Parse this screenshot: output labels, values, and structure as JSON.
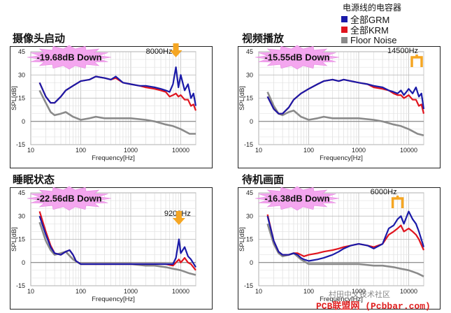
{
  "legend": {
    "title": "电源线的电容器",
    "items": [
      {
        "label": "全部GRM",
        "color": "#1a1aa8"
      },
      {
        "label": "全部KRM",
        "color": "#e0141e"
      },
      {
        "label": "Floor Noise",
        "color": "#8a8a8a"
      }
    ]
  },
  "watermark": {
    "line1": "村田中文技术社区",
    "line2": "PCB联盟网 (Pcbbar.com)"
  },
  "chart_data": [
    {
      "type": "line",
      "title": "摄像头启动",
      "annotation": "-19.68dB Down",
      "marker_label": "8000Hz",
      "marker_freq": 8000,
      "marker_shape": "arrow",
      "xlabel": "Frequency[Hz]",
      "ylabel": "SPL[dB]",
      "xscale": "log",
      "xlim": [
        10,
        20000
      ],
      "ylim": [
        -15,
        45
      ],
      "yticks": [
        -15,
        0,
        15,
        30,
        45
      ],
      "xticks": [
        10,
        100,
        1000,
        10000
      ],
      "series": [
        {
          "name": "全部GRM",
          "color": "#1a1aa8",
          "x": [
            15,
            20,
            25,
            30,
            40,
            50,
            70,
            100,
            150,
            200,
            300,
            400,
            500,
            700,
            1000,
            1500,
            2000,
            3000,
            4000,
            5000,
            6000,
            7000,
            8000,
            9000,
            10000,
            12000,
            14000,
            16000,
            18000,
            20000
          ],
          "y": [
            25,
            16,
            12,
            12,
            16,
            20,
            23,
            26,
            27,
            29,
            28,
            27,
            29,
            25,
            24,
            23,
            23,
            22,
            21,
            20,
            19,
            24,
            35,
            22,
            30,
            20,
            24,
            15,
            18,
            10
          ]
        },
        {
          "name": "全部KRM",
          "color": "#e0141e",
          "x": [
            15,
            20,
            25,
            30,
            40,
            50,
            70,
            100,
            150,
            200,
            300,
            400,
            500,
            700,
            1000,
            1500,
            2000,
            3000,
            4000,
            5000,
            6000,
            7000,
            8000,
            9000,
            10000,
            12000,
            14000,
            16000,
            18000,
            20000
          ],
          "y": [
            25,
            16,
            12,
            12,
            16,
            20,
            23,
            26,
            27,
            29,
            28,
            27,
            28,
            25,
            24,
            23,
            22,
            21,
            20,
            19,
            16,
            17,
            18,
            16,
            17,
            14,
            14,
            10,
            11,
            7
          ]
        },
        {
          "name": "Floor Noise",
          "color": "#8a8a8a",
          "x": [
            15,
            20,
            25,
            30,
            40,
            50,
            70,
            100,
            150,
            200,
            300,
            500,
            700,
            1000,
            2000,
            3000,
            5000,
            7000,
            10000,
            15000,
            20000
          ],
          "y": [
            20,
            12,
            6,
            4,
            5,
            6,
            3,
            1,
            2,
            3,
            2,
            2,
            2,
            2,
            1,
            0,
            -2,
            -3,
            -5,
            -8,
            -8
          ]
        }
      ]
    },
    {
      "type": "line",
      "title": "视频播放",
      "annotation": "-15.55dB Down",
      "marker_label": "14500Hz",
      "marker_freq": 14500,
      "marker_shape": "bracket",
      "xlabel": "Frequency[Hz]",
      "ylabel": "SPL[dB]",
      "xscale": "log",
      "xlim": [
        10,
        20000
      ],
      "ylim": [
        -15,
        45
      ],
      "yticks": [
        -15,
        0,
        15,
        30,
        45
      ],
      "xticks": [
        10,
        100,
        1000,
        10000
      ],
      "series": [
        {
          "name": "全部GRM",
          "color": "#1a1aa8",
          "x": [
            15,
            20,
            25,
            30,
            40,
            50,
            70,
            100,
            150,
            200,
            300,
            400,
            500,
            700,
            1000,
            1500,
            2000,
            3000,
            4000,
            5000,
            6000,
            7000,
            8000,
            9000,
            10000,
            12000,
            14000,
            16000,
            18000,
            20000
          ],
          "y": [
            16,
            8,
            5,
            5,
            9,
            14,
            18,
            21,
            24,
            26,
            27,
            26,
            27,
            26,
            25,
            24,
            23,
            22,
            20,
            19,
            18,
            20,
            17,
            19,
            21,
            18,
            22,
            16,
            18,
            8
          ]
        },
        {
          "name": "全部KRM",
          "color": "#e0141e",
          "x": [
            15,
            20,
            25,
            30,
            40,
            50,
            70,
            100,
            150,
            200,
            300,
            400,
            500,
            700,
            1000,
            1500,
            2000,
            3000,
            4000,
            5000,
            6000,
            7000,
            8000,
            9000,
            10000,
            12000,
            14000,
            16000,
            18000,
            20000
          ],
          "y": [
            16,
            8,
            5,
            5,
            9,
            14,
            18,
            21,
            24,
            26,
            27,
            26,
            27,
            26,
            25,
            24,
            22,
            21,
            20,
            18,
            17,
            17,
            15,
            16,
            17,
            14,
            14,
            10,
            11,
            5
          ]
        },
        {
          "name": "Floor Noise",
          "color": "#8a8a8a",
          "x": [
            15,
            20,
            25,
            30,
            40,
            50,
            70,
            100,
            150,
            200,
            300,
            500,
            700,
            1000,
            2000,
            3000,
            5000,
            7000,
            10000,
            15000,
            20000
          ],
          "y": [
            19,
            10,
            5,
            4,
            6,
            7,
            3,
            1,
            2,
            3,
            2,
            2,
            2,
            2,
            1,
            0,
            -2,
            -3,
            -5,
            -8,
            -9
          ]
        }
      ]
    },
    {
      "type": "line",
      "title": "睡眠状态",
      "annotation": "-22.56dB Down",
      "marker_label": "9200Hz",
      "marker_freq": 9200,
      "marker_shape": "arrow",
      "xlabel": "Frequency[Hz]",
      "ylabel": "SPL[dB]",
      "xscale": "log",
      "xlim": [
        10,
        20000
      ],
      "ylim": [
        -15,
        45
      ],
      "yticks": [
        -15,
        0,
        15,
        30,
        45
      ],
      "xticks": [
        10,
        100,
        1000,
        10000
      ],
      "series": [
        {
          "name": "全部GRM",
          "color": "#1a1aa8",
          "x": [
            15,
            20,
            25,
            30,
            40,
            50,
            60,
            70,
            80,
            100,
            150,
            200,
            300,
            500,
            700,
            1000,
            2000,
            3000,
            5000,
            7000,
            8000,
            9200,
            10000,
            12000,
            14000,
            16000,
            20000
          ],
          "y": [
            30,
            18,
            10,
            6,
            5,
            7,
            8,
            5,
            1,
            -1,
            -1,
            -1,
            -1,
            -1,
            -1,
            -1,
            -1,
            -1,
            -1,
            -1,
            3,
            15,
            6,
            10,
            4,
            2,
            -3
          ]
        },
        {
          "name": "全部KRM",
          "color": "#e0141e",
          "x": [
            15,
            20,
            25,
            30,
            40,
            50,
            60,
            70,
            80,
            100,
            150,
            200,
            300,
            500,
            700,
            1000,
            2000,
            3000,
            5000,
            7000,
            8000,
            9200,
            10000,
            12000,
            14000,
            16000,
            20000
          ],
          "y": [
            33,
            20,
            11,
            6,
            5,
            7,
            8,
            5,
            1,
            -1,
            -1,
            -1,
            -1,
            -1,
            -1,
            -1,
            -1,
            -1,
            -1,
            -2,
            0,
            2,
            0,
            3,
            0,
            -1,
            -5
          ]
        },
        {
          "name": "Floor Noise",
          "color": "#8a8a8a",
          "x": [
            15,
            20,
            25,
            30,
            40,
            50,
            70,
            100,
            150,
            200,
            300,
            500,
            700,
            1000,
            2000,
            3000,
            5000,
            7000,
            10000,
            15000,
            20000
          ],
          "y": [
            26,
            14,
            8,
            5,
            6,
            7,
            2,
            -1,
            -1,
            -1,
            -1,
            -1,
            -1,
            -1,
            -2,
            -2,
            -3,
            -4,
            -5,
            -7,
            -8
          ]
        }
      ]
    },
    {
      "type": "line",
      "title": "待机画面",
      "annotation": "-16.38dB Down",
      "marker_label": "6000Hz",
      "marker_freq": 6000,
      "marker_shape": "bracket",
      "xlabel": "Frequency[Hz]",
      "ylabel": "SPL[dB]",
      "xscale": "log",
      "xlim": [
        10,
        20000
      ],
      "ylim": [
        -15,
        45
      ],
      "yticks": [
        -15,
        0,
        15,
        30,
        45
      ],
      "xticks": [
        10,
        100,
        1000,
        10000
      ],
      "series": [
        {
          "name": "全部GRM",
          "color": "#1a1aa8",
          "x": [
            15,
            20,
            25,
            30,
            40,
            50,
            60,
            70,
            80,
            100,
            150,
            200,
            300,
            400,
            500,
            700,
            1000,
            1500,
            2000,
            3000,
            4000,
            5000,
            6000,
            7000,
            8000,
            10000,
            12000,
            14000,
            16000,
            20000
          ],
          "y": [
            30,
            14,
            7,
            5,
            5,
            6,
            5,
            3,
            2,
            1,
            2,
            3,
            5,
            7,
            9,
            11,
            12,
            11,
            9,
            12,
            22,
            24,
            28,
            30,
            25,
            33,
            28,
            25,
            20,
            10
          ]
        },
        {
          "name": "全部KRM",
          "color": "#e0141e",
          "x": [
            15,
            20,
            25,
            30,
            40,
            50,
            60,
            70,
            80,
            100,
            150,
            200,
            300,
            400,
            500,
            700,
            1000,
            1500,
            2000,
            3000,
            4000,
            5000,
            6000,
            7000,
            8000,
            10000,
            12000,
            14000,
            16000,
            20000
          ],
          "y": [
            31,
            14,
            7,
            5,
            5,
            6,
            6,
            5,
            4,
            5,
            6,
            7,
            8,
            9,
            10,
            11,
            12,
            11,
            10,
            12,
            18,
            20,
            22,
            24,
            20,
            22,
            20,
            18,
            15,
            8
          ]
        },
        {
          "name": "Floor Noise",
          "color": "#8a8a8a",
          "x": [
            15,
            20,
            25,
            30,
            40,
            50,
            70,
            100,
            150,
            200,
            300,
            500,
            700,
            1000,
            2000,
            3000,
            5000,
            7000,
            10000,
            15000,
            20000
          ],
          "y": [
            25,
            12,
            6,
            4,
            5,
            6,
            2,
            -1,
            -1,
            -1,
            -1,
            -1,
            -1,
            -1,
            -2,
            -2,
            -3,
            -4,
            -5,
            -7,
            -9
          ]
        }
      ]
    }
  ]
}
